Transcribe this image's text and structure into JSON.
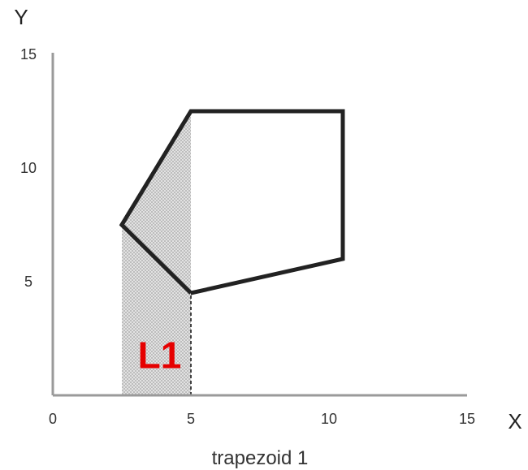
{
  "axes": {
    "x_title": "X",
    "y_title": "Y",
    "x_ticks": [
      {
        "value": 0,
        "label": "0"
      },
      {
        "value": 5,
        "label": "5"
      },
      {
        "value": 10,
        "label": "10"
      },
      {
        "value": 15,
        "label": "15"
      }
    ],
    "y_ticks": [
      {
        "value": 5,
        "label": "5"
      },
      {
        "value": 10,
        "label": "10"
      },
      {
        "value": 15,
        "label": "15"
      }
    ],
    "x_range": [
      0,
      15
    ],
    "y_range": [
      0,
      15
    ]
  },
  "polygon": {
    "vertices": [
      {
        "x": 5,
        "y": 12.5
      },
      {
        "x": 10.5,
        "y": 12.5
      },
      {
        "x": 10.5,
        "y": 6
      },
      {
        "x": 5,
        "y": 4.5
      },
      {
        "x": 2.5,
        "y": 7.5
      }
    ],
    "outline_color": "#222222"
  },
  "region": {
    "label": "L1",
    "label_color": "#e60000",
    "shade_color": "#c9c9c9",
    "x_from": 2.5,
    "x_to": 5,
    "vertices": [
      {
        "x": 2.5,
        "y": 0
      },
      {
        "x": 2.5,
        "y": 7.5
      },
      {
        "x": 5,
        "y": 12.5
      },
      {
        "x": 5,
        "y": 0
      }
    ]
  },
  "caption": "trapezoid 1"
}
